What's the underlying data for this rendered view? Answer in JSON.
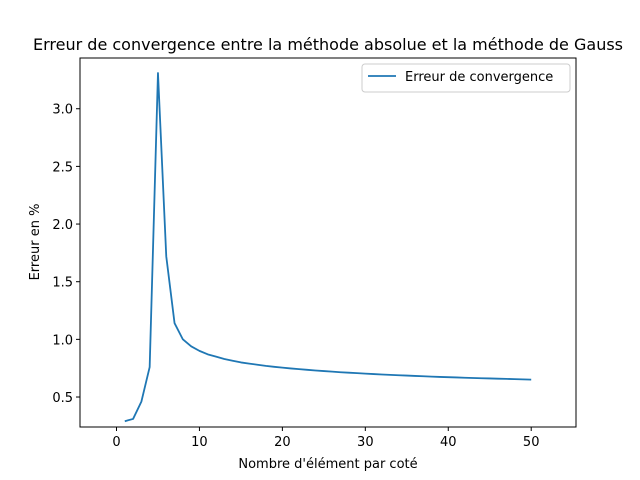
{
  "chart_data": {
    "type": "line",
    "title": "Erreur de convergence entre la méthode absolue et la méthode de Gauss",
    "xlabel": "Nombre d'élément par coté",
    "ylabel": "Erreur en %",
    "xlim": [
      -4.4,
      55.4
    ],
    "ylim": [
      0.24,
      3.44
    ],
    "xticks": [
      0,
      10,
      20,
      30,
      40,
      50
    ],
    "xtick_labels": [
      "0",
      "10",
      "20",
      "30",
      "40",
      "50"
    ],
    "yticks": [
      0.5,
      1.0,
      1.5,
      2.0,
      2.5,
      3.0
    ],
    "ytick_labels": [
      "0.5",
      "1.0",
      "1.5",
      "2.0",
      "2.5",
      "3.0"
    ],
    "grid": false,
    "legend_position": "top-right",
    "series": [
      {
        "name": "Erreur de convergence",
        "color": "#1f77b4",
        "x": [
          1,
          2,
          3,
          4,
          5,
          6,
          7,
          8,
          9,
          10,
          11,
          12,
          13,
          14,
          15,
          16,
          17,
          18,
          19,
          20,
          21,
          22,
          23,
          24,
          25,
          26,
          27,
          28,
          29,
          30,
          31,
          32,
          33,
          34,
          35,
          36,
          37,
          38,
          39,
          40,
          41,
          42,
          43,
          44,
          45,
          46,
          47,
          48,
          49,
          50
        ],
        "y": [
          0.29,
          0.31,
          0.46,
          0.76,
          3.31,
          1.72,
          1.14,
          1.0,
          0.94,
          0.9,
          0.87,
          0.85,
          0.83,
          0.815,
          0.8,
          0.79,
          0.78,
          0.77,
          0.762,
          0.755,
          0.748,
          0.742,
          0.736,
          0.73,
          0.725,
          0.72,
          0.715,
          0.711,
          0.707,
          0.703,
          0.699,
          0.695,
          0.692,
          0.689,
          0.686,
          0.683,
          0.68,
          0.677,
          0.674,
          0.672,
          0.67,
          0.667,
          0.665,
          0.663,
          0.661,
          0.659,
          0.657,
          0.655,
          0.653,
          0.651
        ]
      }
    ]
  }
}
